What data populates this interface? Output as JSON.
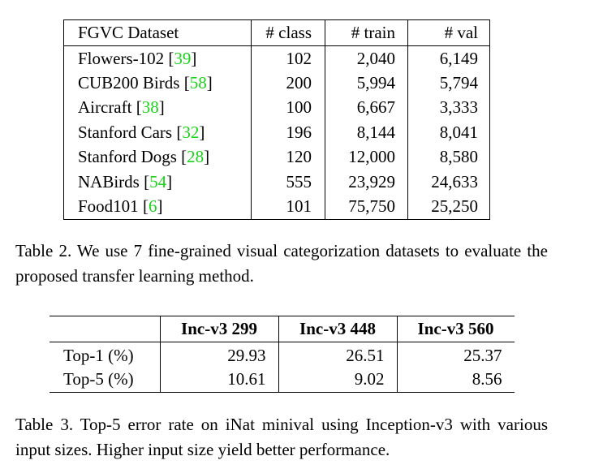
{
  "table2": {
    "headers": [
      "FGVC Dataset",
      "# class",
      "# train",
      "# val"
    ],
    "rows": [
      {
        "name": "Flowers-102",
        "cite": "39",
        "classes": "102",
        "train": "2,040",
        "val": "6,149"
      },
      {
        "name": "CUB200 Birds",
        "cite": "58",
        "classes": "200",
        "train": "5,994",
        "val": "5,794"
      },
      {
        "name": "Aircraft",
        "cite": "38",
        "classes": "100",
        "train": "6,667",
        "val": "3,333"
      },
      {
        "name": "Stanford Cars",
        "cite": "32",
        "classes": "196",
        "train": "8,144",
        "val": "8,041"
      },
      {
        "name": "Stanford Dogs",
        "cite": "28",
        "classes": "120",
        "train": "12,000",
        "val": "8,580"
      },
      {
        "name": "NABirds",
        "cite": "54",
        "classes": "555",
        "train": "23,929",
        "val": "24,633"
      },
      {
        "name": "Food101",
        "cite": "6",
        "classes": "101",
        "train": "75,750",
        "val": "25,250"
      }
    ],
    "caption": "Table 2. We use 7 fine-grained visual categorization datasets to evaluate the proposed transfer learning method."
  },
  "table3": {
    "headers": [
      "",
      "Inc-v3 299",
      "Inc-v3 448",
      "Inc-v3 560"
    ],
    "rows": [
      {
        "label": "Top-1 (%)",
        "values": [
          "29.93",
          "26.51",
          "25.37"
        ]
      },
      {
        "label": "Top-5 (%)",
        "values": [
          "10.61",
          "9.02",
          "8.56"
        ]
      }
    ],
    "caption": "Table 3. Top-5 error rate on iNat minival using Inception-v3 with various input sizes. Higher input size yield better performance."
  },
  "colors": {
    "citation": "#18d318",
    "text": "#000000"
  }
}
